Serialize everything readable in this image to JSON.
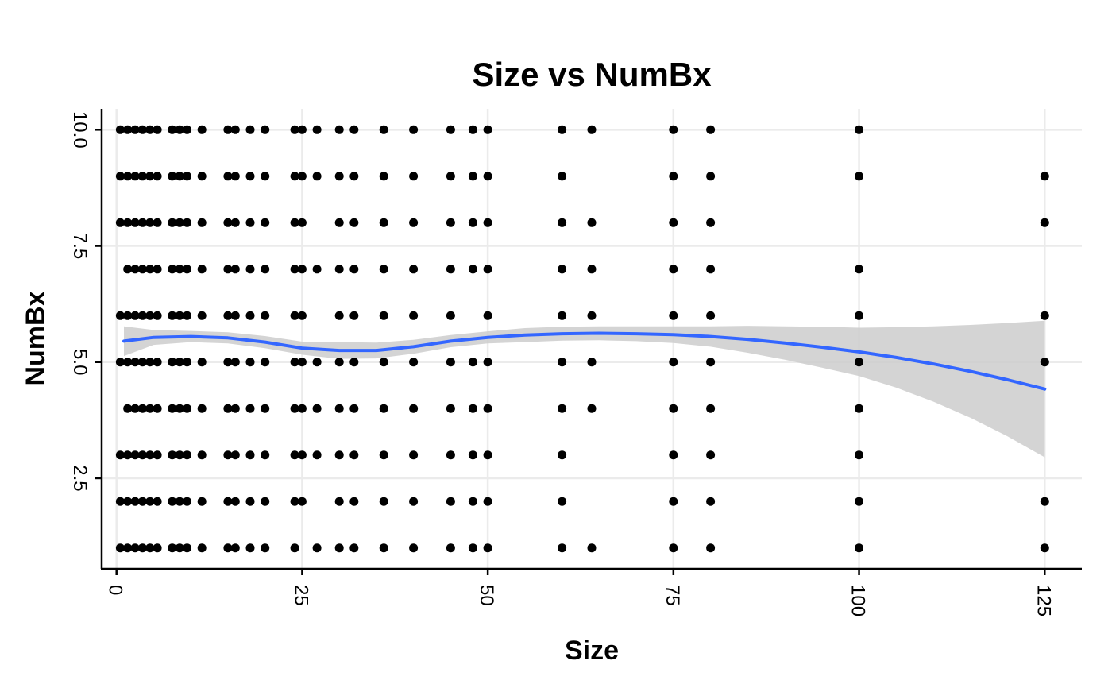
{
  "chart_data": {
    "type": "scatter",
    "title": "Size vs NumBx",
    "xlabel": "Size",
    "ylabel": "NumBx",
    "xlim": [
      -2,
      130
    ],
    "ylim": [
      0.55,
      10.45
    ],
    "x_ticks": [
      0,
      25,
      50,
      75,
      100,
      125
    ],
    "x_tick_labels": [
      "0",
      "25",
      "50",
      "75",
      "100",
      "125"
    ],
    "y_ticks": [
      2.5,
      5.0,
      7.5,
      10.0
    ],
    "y_tick_labels": [
      "2.5",
      "5.0",
      "7.5",
      "10.0"
    ],
    "grid": true,
    "legend": "none",
    "point_color": "#000000",
    "smooth_color": "#3366ff",
    "band_color": "#cccccc",
    "points_by_level": [
      {
        "y": 10,
        "x": [
          0.5,
          1.5,
          2.5,
          3.5,
          4.5,
          5.5,
          7.5,
          8.5,
          9.5,
          11.5,
          15,
          16,
          18,
          20,
          24,
          25,
          27,
          30,
          32,
          36,
          40,
          45,
          48,
          50,
          60,
          64,
          75,
          80,
          100
        ]
      },
      {
        "y": 9,
        "x": [
          0.5,
          1.5,
          2.5,
          3.5,
          4.5,
          5.5,
          7.5,
          8.5,
          9.5,
          11.5,
          15,
          16,
          18,
          20,
          24,
          25,
          27,
          30,
          32,
          36,
          40,
          45,
          48,
          50,
          60,
          75,
          80,
          100,
          125
        ]
      },
      {
        "y": 8,
        "x": [
          0.5,
          1.5,
          2.5,
          3.5,
          4.5,
          5.5,
          7.5,
          8.5,
          9.5,
          11.5,
          15,
          16,
          18,
          20,
          24,
          25,
          30,
          32,
          36,
          40,
          45,
          48,
          50,
          60,
          64,
          75,
          80,
          125
        ]
      },
      {
        "y": 7,
        "x": [
          1.5,
          2.5,
          3.5,
          4.5,
          5.5,
          7.5,
          8.5,
          9.5,
          11.5,
          15,
          16,
          18,
          20,
          24,
          25,
          27,
          30,
          32,
          36,
          40,
          45,
          48,
          50,
          60,
          64,
          75,
          80,
          100
        ]
      },
      {
        "y": 6,
        "x": [
          0.5,
          1.5,
          2.5,
          3.5,
          4.5,
          5.5,
          7.5,
          8.5,
          9.5,
          11.5,
          15,
          16,
          18,
          20,
          24,
          25,
          30,
          32,
          36,
          40,
          45,
          50,
          60,
          64,
          75,
          80,
          100,
          125
        ]
      },
      {
        "y": 5,
        "x": [
          0.5,
          1.5,
          2.5,
          3.5,
          4.5,
          5.5,
          7.5,
          8.5,
          9.5,
          11.5,
          15,
          16,
          18,
          20,
          24,
          25,
          27,
          30,
          32,
          36,
          40,
          45,
          48,
          50,
          60,
          64,
          75,
          80,
          100,
          125
        ]
      },
      {
        "y": 4,
        "x": [
          1.5,
          2.5,
          3.5,
          4.5,
          5.5,
          7.5,
          8.5,
          9.5,
          11.5,
          15,
          16,
          18,
          20,
          24,
          25,
          27,
          30,
          32,
          36,
          40,
          45,
          48,
          50,
          60,
          64,
          75,
          80,
          100
        ]
      },
      {
        "y": 3,
        "x": [
          0.5,
          1.5,
          2.5,
          3.5,
          4.5,
          5.5,
          7.5,
          8.5,
          9.5,
          11.5,
          15,
          16,
          18,
          20,
          24,
          25,
          27,
          30,
          32,
          36,
          40,
          45,
          48,
          50,
          60,
          75,
          80,
          100
        ]
      },
      {
        "y": 2,
        "x": [
          0.5,
          1.5,
          2.5,
          3.5,
          4.5,
          5.5,
          7.5,
          8.5,
          9.5,
          11.5,
          15,
          16,
          18,
          20,
          24,
          25,
          30,
          32,
          36,
          40,
          45,
          48,
          50,
          60,
          75,
          80,
          100,
          125
        ]
      },
      {
        "y": 1,
        "x": [
          0.5,
          1.5,
          2.5,
          3.5,
          4.5,
          5.5,
          7.5,
          8.5,
          9.5,
          11.5,
          15,
          16,
          18,
          20,
          24,
          27,
          30,
          32,
          36,
          40,
          45,
          48,
          50,
          60,
          64,
          75,
          80,
          100,
          125
        ]
      }
    ],
    "smooth_line": {
      "x": [
        1,
        5,
        10,
        15,
        20,
        25,
        30,
        35,
        40,
        45,
        50,
        55,
        60,
        65,
        70,
        75,
        80,
        85,
        90,
        95,
        100,
        105,
        110,
        115,
        120,
        125
      ],
      "y": [
        5.45,
        5.53,
        5.55,
        5.52,
        5.43,
        5.3,
        5.25,
        5.25,
        5.33,
        5.45,
        5.53,
        5.58,
        5.61,
        5.62,
        5.61,
        5.59,
        5.55,
        5.49,
        5.41,
        5.32,
        5.22,
        5.1,
        4.96,
        4.8,
        4.62,
        4.42
      ],
      "ymin": [
        5.13,
        5.37,
        5.43,
        5.4,
        5.3,
        5.16,
        5.07,
        5.08,
        5.18,
        5.32,
        5.4,
        5.43,
        5.46,
        5.47,
        5.45,
        5.41,
        5.33,
        5.2,
        5.05,
        4.88,
        4.7,
        4.45,
        4.15,
        3.8,
        3.4,
        2.95
      ],
      "ymax": [
        5.77,
        5.69,
        5.67,
        5.64,
        5.56,
        5.44,
        5.43,
        5.42,
        5.48,
        5.58,
        5.66,
        5.73,
        5.76,
        5.77,
        5.77,
        5.77,
        5.77,
        5.78,
        5.77,
        5.76,
        5.74,
        5.75,
        5.77,
        5.8,
        5.84,
        5.89
      ]
    }
  }
}
